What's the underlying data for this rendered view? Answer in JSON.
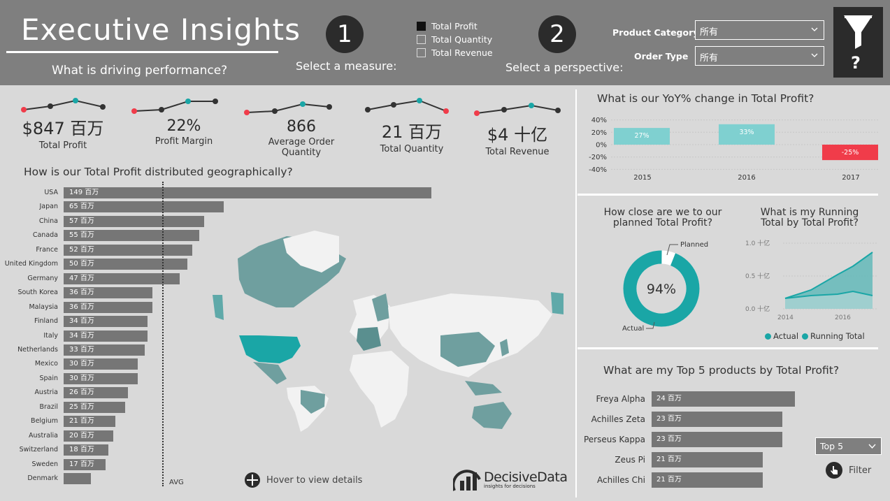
{
  "header": {
    "title": "Executive Insights",
    "subtitle": "What is driving performance?",
    "step1": {
      "number": "1",
      "label": "Select a measure:"
    },
    "step2": {
      "number": "2",
      "label": "Select a perspective:"
    },
    "measures": [
      {
        "label": "Total Profit",
        "checked": true
      },
      {
        "label": "Total Quantity",
        "checked": false
      },
      {
        "label": "Total Revenue",
        "checked": false
      }
    ],
    "filters": {
      "product_category": {
        "label": "Product Category",
        "value": "所有"
      },
      "order_type": {
        "label": "Order Type",
        "value": "所有"
      }
    },
    "filter_panel": {
      "icon": "funnel-icon",
      "help": "?"
    }
  },
  "kpis": [
    {
      "value": "$847 百万",
      "label": "Total Profit"
    },
    {
      "value": "22%",
      "label": "Profit Margin"
    },
    {
      "value": "866",
      "label": "Average Order Quantity"
    },
    {
      "value": "21 百万",
      "label": "Total Quantity"
    },
    {
      "value": "$4 十亿",
      "label": "Total Revenue"
    }
  ],
  "geo": {
    "title": "How is our Total Profit distributed geographically?",
    "avg_label": "AVG",
    "hover_hint": "Hover to view details",
    "rows": [
      {
        "country": "USA",
        "value": 149,
        "label": "149 百万"
      },
      {
        "country": "Japan",
        "value": 65,
        "label": "65 百万"
      },
      {
        "country": "China",
        "value": 57,
        "label": "57 百万"
      },
      {
        "country": "Canada",
        "value": 55,
        "label": "55 百万"
      },
      {
        "country": "France",
        "value": 52,
        "label": "52 百万"
      },
      {
        "country": "United Kingdom",
        "value": 50,
        "label": "50 百万"
      },
      {
        "country": "Germany",
        "value": 47,
        "label": "47 百万"
      },
      {
        "country": "South Korea",
        "value": 36,
        "label": "36 百万"
      },
      {
        "country": "Malaysia",
        "value": 36,
        "label": "36 百万"
      },
      {
        "country": "Finland",
        "value": 34,
        "label": "34 百万"
      },
      {
        "country": "Italy",
        "value": 34,
        "label": "34 百万"
      },
      {
        "country": "Netherlands",
        "value": 33,
        "label": "33 百万"
      },
      {
        "country": "Mexico",
        "value": 30,
        "label": "30 百万"
      },
      {
        "country": "Spain",
        "value": 30,
        "label": "30 百万"
      },
      {
        "country": "Austria",
        "value": 26,
        "label": "26 百万"
      },
      {
        "country": "Brazil",
        "value": 25,
        "label": "25 百万"
      },
      {
        "country": "Belgium",
        "value": 21,
        "label": "21 百万"
      },
      {
        "country": "Australia",
        "value": 20,
        "label": "20 百万"
      },
      {
        "country": "Switzerland",
        "value": 18,
        "label": "18 百万"
      },
      {
        "country": "Sweden",
        "value": 17,
        "label": "17 百万"
      },
      {
        "country": "Denmark",
        "value": 11,
        "label": ""
      }
    ]
  },
  "yoy": {
    "title": "What is our YoY% change in Total Profit?",
    "y_ticks": [
      "40%",
      "20%",
      "0%",
      "-20%",
      "-40%"
    ],
    "bars": [
      {
        "year": "2015",
        "value": 27,
        "label": "27%"
      },
      {
        "year": "2016",
        "value": 33,
        "label": "33%"
      },
      {
        "year": "2017",
        "value": -25,
        "label": "-25%"
      }
    ]
  },
  "gauge": {
    "title_line1": "How close are we to our",
    "title_line2": "planned Total Profit?",
    "percent": 94,
    "center_label": "94%",
    "planned_label": "Planned",
    "actual_label": "Actual"
  },
  "running": {
    "title_line1": "What is my Running",
    "title_line2": "Total by Total Profit?",
    "y_ticks": [
      "1.0 十亿",
      "0.5 十亿",
      "0.0 十亿"
    ],
    "x_ticks": [
      "2014",
      "2016"
    ],
    "legend": [
      {
        "name": "Actual",
        "color": "#1aa6a6"
      },
      {
        "name": "Running Total",
        "color": "#1aa6a6"
      }
    ]
  },
  "top5": {
    "title": "What are my Top 5 products by Total Profit?",
    "items": [
      {
        "name": "Freya Alpha",
        "value": 24,
        "label": "24 百万"
      },
      {
        "name": "Achilles Zeta",
        "value": 23,
        "label": "23 百万"
      },
      {
        "name": "Perseus Kappa",
        "value": 23,
        "label": "23 百万"
      },
      {
        "name": "Zeus Pi",
        "value": 21,
        "label": "21 百万"
      },
      {
        "name": "Achilles Chi",
        "value": 21,
        "label": "21 百万"
      }
    ],
    "topn_select": "Top 5",
    "filter_label": "Filter"
  },
  "brand": {
    "name": "DecisiveData",
    "tagline": "insights for decisions"
  },
  "colors": {
    "header_bg": "#7f7f7f",
    "body_bg": "#d9d9d9",
    "teal": "#1aa6a6",
    "light_teal": "#7fd0d0",
    "red": "#f03c4a",
    "bar_gray": "#767676"
  }
}
